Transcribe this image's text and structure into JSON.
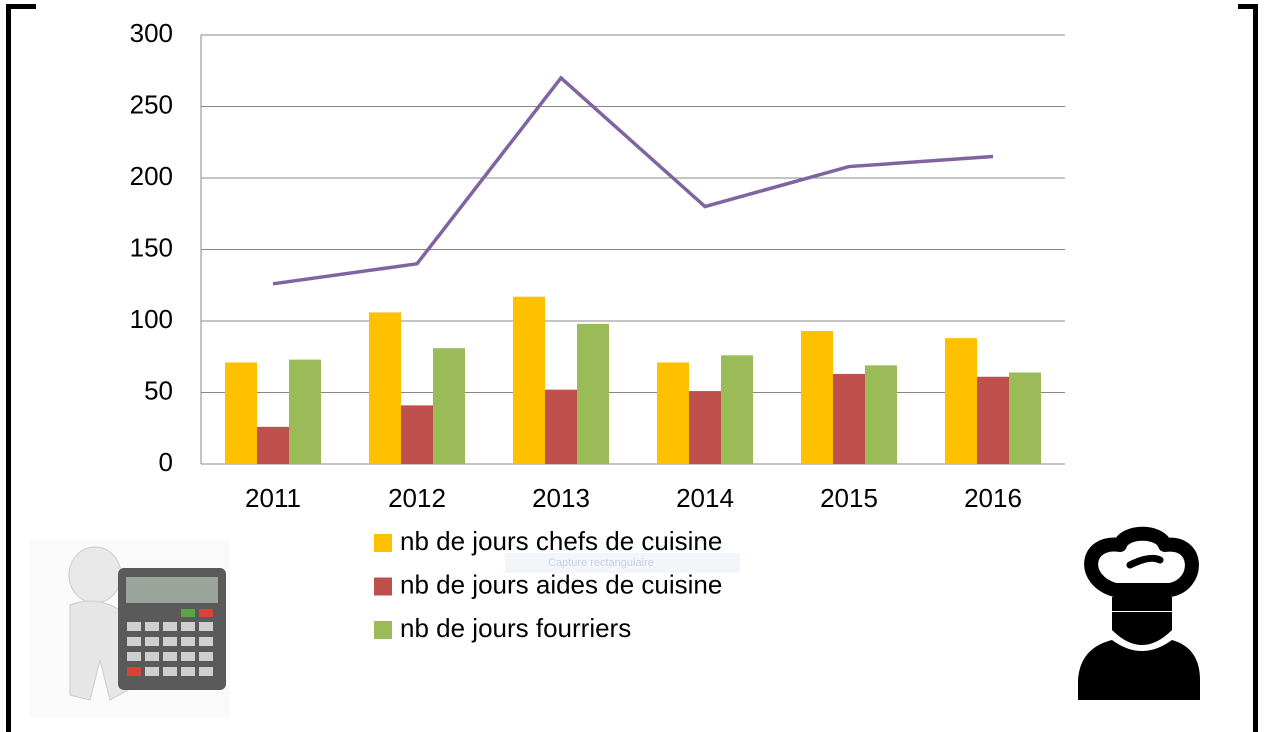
{
  "chart_data": {
    "type": "bar",
    "categories": [
      "2011",
      "2012",
      "2013",
      "2014",
      "2015",
      "2016"
    ],
    "series": [
      {
        "name": "nb de jours chefs de cuisine",
        "color": "#ffc000",
        "values": [
          71,
          106,
          117,
          71,
          93,
          88
        ]
      },
      {
        "name": "nb de jours aides de cuisine",
        "color": "#c0504d",
        "values": [
          26,
          41,
          52,
          51,
          63,
          61
        ]
      },
      {
        "name": "nb de jours fourriers",
        "color": "#9bbb59",
        "values": [
          73,
          81,
          98,
          76,
          69,
          64
        ]
      },
      {
        "type": "line",
        "color": "#8064a2",
        "values": [
          126,
          140,
          270,
          180,
          208,
          215
        ]
      }
    ],
    "ylim": [
      0,
      300
    ],
    "yticks": [
      0,
      50,
      100,
      150,
      200,
      250,
      300
    ],
    "grid": true
  },
  "overlay_text": "Capture rectangulaire"
}
